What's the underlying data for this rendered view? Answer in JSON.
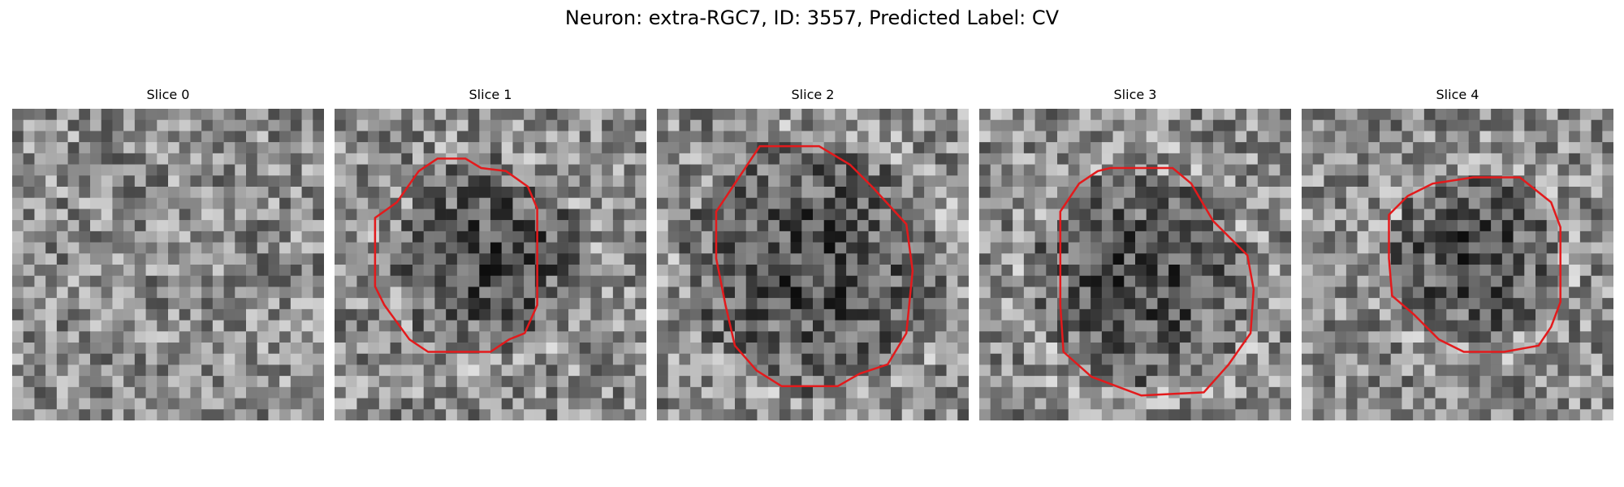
{
  "figure": {
    "title": "Neuron: extra-RGC7, ID: 3557, Predicted Label: CV"
  },
  "panels": [
    {
      "title": "Slice 0",
      "contour": false,
      "contour_color": "#e31a1c",
      "seed": 11,
      "center": [
        0.45,
        0.5
      ],
      "dark_radius": 0.0
    },
    {
      "title": "Slice 1",
      "contour": true,
      "contour_color": "#e31a1c",
      "seed": 23,
      "center": [
        0.5,
        0.48
      ],
      "dark_radius": 0.32
    },
    {
      "title": "Slice 2",
      "contour": true,
      "contour_color": "#e31a1c",
      "seed": 37,
      "center": [
        0.5,
        0.5
      ],
      "dark_radius": 0.42
    },
    {
      "title": "Slice 3",
      "contour": true,
      "contour_color": "#e31a1c",
      "seed": 41,
      "center": [
        0.52,
        0.55
      ],
      "dark_radius": 0.36
    },
    {
      "title": "Slice 4",
      "contour": true,
      "contour_color": "#e31a1c",
      "seed": 53,
      "center": [
        0.55,
        0.48
      ],
      "dark_radius": 0.28
    }
  ],
  "colormap": "gray"
}
